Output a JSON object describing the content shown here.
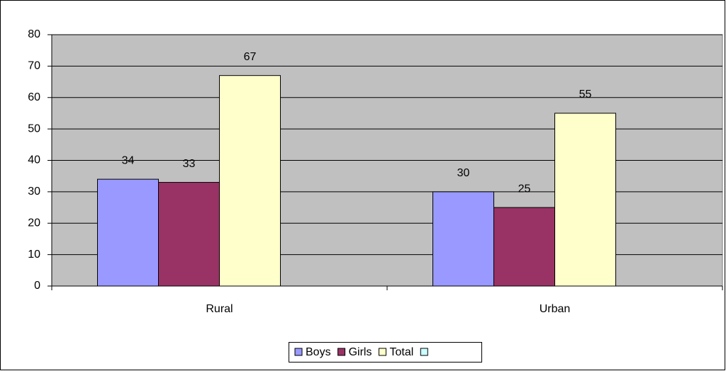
{
  "chart_data": {
    "type": "bar",
    "categories": [
      "Rural",
      "Urban"
    ],
    "series": [
      {
        "name": "Boys",
        "color": "#9999ff",
        "values": [
          34,
          30
        ]
      },
      {
        "name": "Girls",
        "color": "#993366",
        "values": [
          33,
          25
        ]
      },
      {
        "name": "Total",
        "color": "#ffffcc",
        "values": [
          67,
          55
        ]
      }
    ],
    "ylim": [
      0,
      80
    ],
    "yticks": [
      0,
      10,
      20,
      30,
      40,
      50,
      60,
      70,
      80
    ],
    "grid": true,
    "legend": "bottom"
  }
}
